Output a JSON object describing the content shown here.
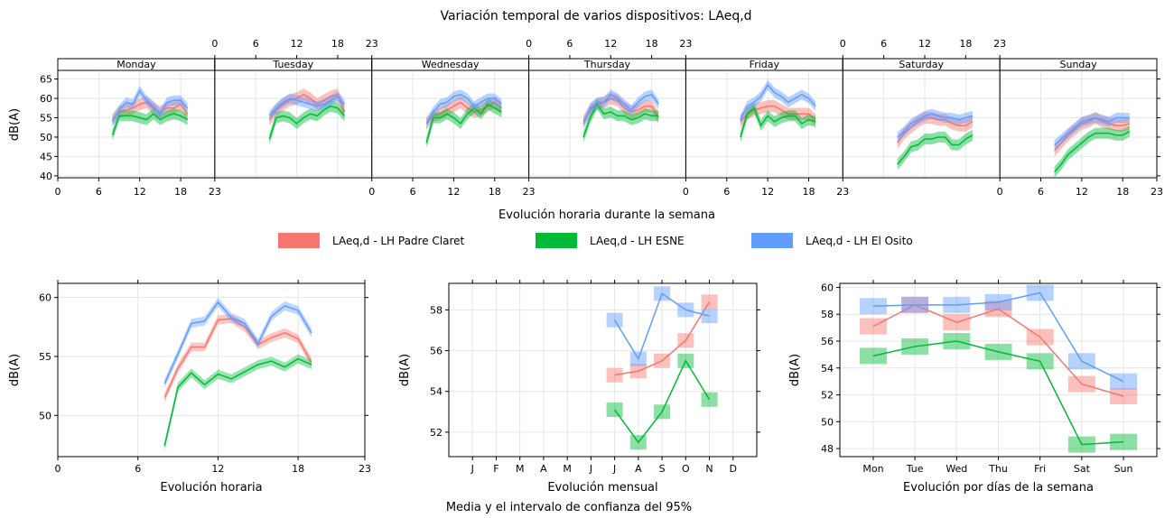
{
  "figure": {
    "title": "Variación temporal de varios dispositivos: LAeq,d",
    "footer": "Media y el intervalo de confianza del 95%"
  },
  "legend": {
    "items": [
      {
        "label": "LAeq,d  - LH Padre Claret",
        "color": "#F8766D"
      },
      {
        "label": "LAeq,d  - LH ESNE",
        "color": "#00BA38"
      },
      {
        "label": "LAeq,d  - LH El Osito",
        "color": "#619CFF"
      }
    ]
  },
  "chart_data": [
    {
      "type": "line",
      "title": "",
      "xlabel": "Evolución horaria durante la semana",
      "ylabel": "dB(A)",
      "ylim": [
        39.5,
        67
      ],
      "xlim": [
        0,
        23
      ],
      "x_ticks": [
        "0",
        "6",
        "12",
        "18",
        "23"
      ],
      "y_ticks": [
        "40",
        "45",
        "50",
        "55",
        "60",
        "65"
      ],
      "panels": [
        "Monday",
        "Tuesday",
        "Wednesday",
        "Thursday",
        "Friday",
        "Saturday",
        "Sunday"
      ],
      "x": [
        8,
        9,
        10,
        11,
        12,
        13,
        14,
        15,
        16,
        17,
        18,
        19
      ],
      "series": [
        {
          "name": "LH Padre Claret",
          "color": "#F8766D",
          "values": [
            [
              54.5,
              56.5,
              57,
              57.5,
              58.5,
              59,
              57.5,
              56.5,
              57.5,
              57.5,
              58.5,
              56
            ],
            [
              54.5,
              57,
              58.5,
              59.5,
              60,
              61,
              60,
              58.5,
              59.5,
              60.5,
              61,
              56.5
            ],
            [
              53.5,
              55.5,
              56,
              57,
              58,
              59,
              57.5,
              56.5,
              57,
              58,
              59,
              57.5
            ],
            [
              54,
              57,
              58.5,
              59,
              60,
              59.5,
              57.5,
              56.5,
              57,
              58,
              58,
              55
            ],
            [
              54,
              56,
              57,
              57.5,
              58,
              58,
              57,
              56,
              56,
              56,
              56,
              54.5
            ],
            [
              48.5,
              51,
              52.5,
              54,
              55,
              55,
              54.5,
              54.5,
              53.5,
              53,
              53,
              54
            ],
            [
              46.5,
              48.5,
              50.5,
              52,
              53.5,
              54,
              55,
              54,
              53.5,
              53,
              53,
              53.5
            ]
          ]
        },
        {
          "name": "LH ESNE",
          "color": "#00BA38",
          "values": [
            [
              50.5,
              55.5,
              55.5,
              55.5,
              55,
              54.5,
              56,
              54.5,
              55.5,
              56,
              55.5,
              54.5
            ],
            [
              49.5,
              55,
              55.5,
              55,
              53.5,
              55,
              56,
              55.5,
              57,
              58,
              57.5,
              55.5
            ],
            [
              48.5,
              55,
              55,
              56,
              55,
              53.5,
              56,
              57.5,
              56,
              58.5,
              57.5,
              56.5
            ],
            [
              50,
              55,
              58.5,
              56,
              56.5,
              55.5,
              55.5,
              54.5,
              55,
              56,
              55.5,
              55.5
            ],
            [
              50,
              56,
              57.5,
              53,
              55.5,
              54,
              55,
              55.5,
              55.5,
              53.5,
              54.5,
              54
            ],
            [
              43,
              45,
              47.5,
              48,
              49.5,
              49.5,
              50,
              50,
              48,
              48,
              49.5,
              50.5
            ],
            [
              41,
              43,
              45.5,
              47,
              48.5,
              50,
              51,
              51,
              51,
              50.5,
              50.5,
              51.5
            ]
          ]
        },
        {
          "name": "LH El Osito",
          "color": "#619CFF",
          "values": [
            [
              54,
              57,
              59,
              58.5,
              62,
              59.5,
              58,
              56,
              59,
              59.5,
              59.5,
              57.5
            ],
            [
              55.5,
              57.5,
              59,
              60,
              59.5,
              59,
              58.5,
              58,
              58.5,
              59.5,
              60.5,
              58.5
            ],
            [
              53.5,
              56.5,
              58.5,
              59,
              60.5,
              61,
              60,
              58,
              59,
              60,
              60,
              58.5
            ],
            [
              53.5,
              57.5,
              59,
              59,
              61,
              60,
              58.5,
              57,
              59,
              60.5,
              61,
              58.5
            ],
            [
              54.5,
              58,
              59,
              60.5,
              63.5,
              61.5,
              60.5,
              59,
              60,
              61,
              60,
              58
            ],
            [
              50,
              51.5,
              53.5,
              54.5,
              55.5,
              56,
              55.5,
              55,
              55,
              54.5,
              55,
              55.5
            ],
            [
              48,
              49.5,
              51,
              52.5,
              54,
              54.5,
              55,
              54.5,
              54,
              55,
              55,
              55
            ]
          ]
        }
      ]
    },
    {
      "type": "line",
      "title": "",
      "xlabel": "Evolución horaria",
      "ylabel": "dB(A)",
      "ylim": [
        46.5,
        61.2
      ],
      "xlim": [
        0,
        23
      ],
      "x_ticks": [
        "0",
        "6",
        "12",
        "18",
        "23"
      ],
      "y_ticks": [
        "50",
        "55",
        "60"
      ],
      "x": [
        8,
        9,
        10,
        11,
        12,
        13,
        14,
        15,
        16,
        17,
        18,
        19
      ],
      "series": [
        {
          "name": "LH Padre Claret",
          "color": "#F8766D",
          "values": [
            51.5,
            54,
            55.8,
            55.8,
            58.1,
            58.2,
            57.5,
            56,
            56.6,
            57,
            56.5,
            54.5
          ]
        },
        {
          "name": "LH ESNE",
          "color": "#00BA38",
          "values": [
            47.4,
            52.4,
            53.6,
            52.6,
            53.5,
            53.1,
            53.7,
            54.3,
            54.6,
            54.1,
            54.8,
            54.3
          ]
        },
        {
          "name": "LH El Osito",
          "color": "#619CFF",
          "values": [
            52.7,
            55.2,
            57.8,
            58,
            59.6,
            58.3,
            57.8,
            56.1,
            58.4,
            59.3,
            58.9,
            57
          ]
        }
      ]
    },
    {
      "type": "line",
      "title": "",
      "xlabel": "Evolución mensual",
      "ylabel": "dB(A)",
      "ylim": [
        50.8,
        59.3
      ],
      "categories": [
        "J",
        "F",
        "M",
        "A",
        "M",
        "J",
        "J",
        "A",
        "S",
        "O",
        "N",
        "D"
      ],
      "y_ticks": [
        "52",
        "54",
        "56",
        "58"
      ],
      "series": [
        {
          "name": "LH Padre Claret",
          "color": "#F8766D",
          "values": [
            null,
            null,
            null,
            null,
            null,
            null,
            54.8,
            55,
            55.5,
            56.5,
            58.4,
            null
          ]
        },
        {
          "name": "LH ESNE",
          "color": "#00BA38",
          "values": [
            null,
            null,
            null,
            null,
            null,
            null,
            53.1,
            51.5,
            53,
            55.5,
            53.6,
            null
          ]
        },
        {
          "name": "LH El Osito",
          "color": "#619CFF",
          "values": [
            null,
            null,
            null,
            null,
            null,
            null,
            57.5,
            55.6,
            58.8,
            58,
            57.7,
            null
          ]
        }
      ]
    },
    {
      "type": "line",
      "title": "",
      "xlabel": "Evolución por días de la semana",
      "ylabel": "dB(A)",
      "ylim": [
        47.4,
        60.3
      ],
      "categories": [
        "Mon",
        "Tue",
        "Wed",
        "Thu",
        "Fri",
        "Sat",
        "Sun"
      ],
      "y_ticks": [
        "48",
        "50",
        "52",
        "54",
        "56",
        "58",
        "60"
      ],
      "series": [
        {
          "name": "LH Padre Claret",
          "color": "#F8766D",
          "values": [
            57.1,
            58.7,
            57.4,
            58.4,
            56.3,
            52.8,
            51.9
          ]
        },
        {
          "name": "LH ESNE",
          "color": "#00BA38",
          "values": [
            54.9,
            55.6,
            56,
            55.2,
            54.5,
            48.3,
            48.5
          ]
        },
        {
          "name": "LH El Osito",
          "color": "#619CFF",
          "values": [
            58.6,
            58.7,
            58.7,
            58.9,
            59.6,
            54.5,
            53
          ]
        }
      ]
    }
  ]
}
